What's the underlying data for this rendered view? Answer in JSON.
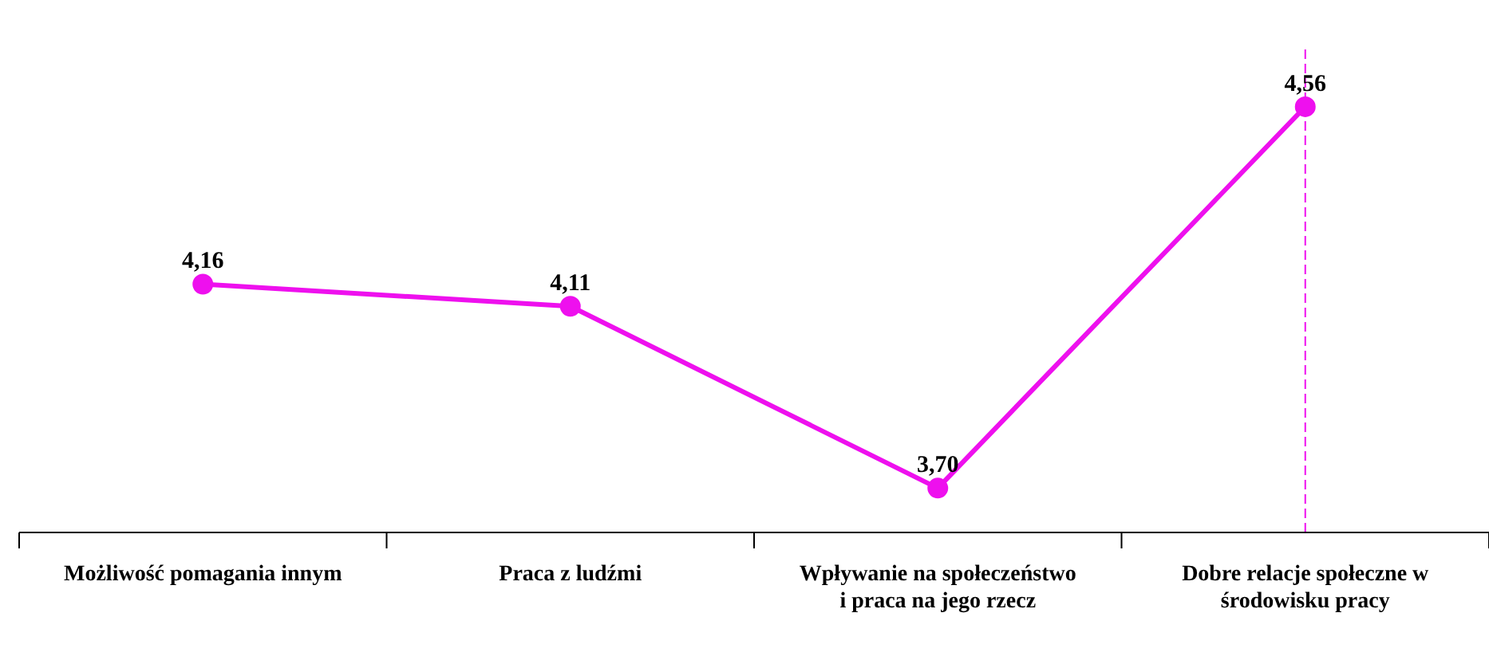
{
  "chart_data": {
    "type": "line",
    "categories": [
      "Możliwość pomagania innym",
      "Praca z ludźmi",
      "Wpływanie na społeczeństwo i praca na jego rzecz",
      "Dobre relacje społeczne w środowisku pracy"
    ],
    "series": [
      {
        "color": "#ee10ee",
        "values": [
          4.16,
          4.11,
          3.7,
          4.56
        ],
        "value_labels": [
          "4,16",
          "4,11",
          "3,70",
          "4,56"
        ]
      }
    ],
    "ylim": [
      3.6,
      4.7
    ],
    "tick_labels": "x",
    "marker": "circle",
    "line_style": "solid",
    "ref_lines": [
      {
        "axis": "x",
        "value": "Dobre relacje społeczne w środowisku pracy",
        "color": "#ee10ee",
        "line_style": "dashed"
      }
    ]
  }
}
